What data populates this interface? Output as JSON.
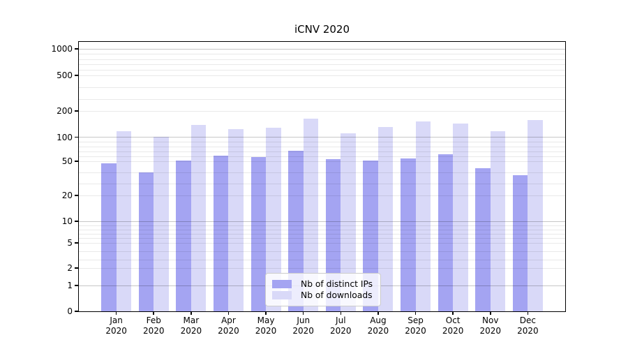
{
  "title": "iCNV 2020",
  "chart_data": {
    "type": "bar",
    "title": "iCNV 2020",
    "categories": [
      "Jan",
      "Feb",
      "Mar",
      "Apr",
      "May",
      "Jun",
      "Jul",
      "Aug",
      "Sep",
      "Oct",
      "Nov",
      "Dec"
    ],
    "category_year": "2020",
    "series": [
      {
        "name": "Nb of distinct IPs",
        "color": "#a4a4f2",
        "values": [
          48,
          40,
          51,
          61,
          58,
          72,
          54,
          52,
          56,
          65,
          44,
          38
        ]
      },
      {
        "name": "Nb of downloads",
        "color": "#d9d9f8",
        "values": [
          124,
          101,
          146,
          130,
          135,
          172,
          114,
          138,
          159,
          151,
          122,
          165
        ]
      }
    ],
    "y_axis": {
      "scale": "symlog",
      "ticks": [
        0,
        1,
        2,
        5,
        10,
        20,
        50,
        100,
        200,
        500,
        1000
      ],
      "tick_labels": [
        "0",
        "1",
        "2",
        "5",
        "10",
        "20",
        "50",
        "100",
        "200",
        "500",
        "1000"
      ]
    },
    "x_axis": {
      "tick_labels_line1": [
        "Jan",
        "Feb",
        "Mar",
        "Apr",
        "May",
        "Jun",
        "Jul",
        "Aug",
        "Sep",
        "Oct",
        "Nov",
        "Dec"
      ],
      "tick_labels_line2": "2020"
    },
    "legend": {
      "position": "inside-bottom-center",
      "entries": [
        "Nb of distinct IPs",
        "Nb of downloads"
      ]
    },
    "grid": "on",
    "ylim": [
      0,
      1000
    ]
  },
  "colors": {
    "bar_dark": "#a4a4f2",
    "bar_light": "#d9d9f8",
    "grid_major": "#c7c7c7",
    "grid_minor": "#e9e9e9",
    "spine": "#000000",
    "background": "#ffffff"
  }
}
